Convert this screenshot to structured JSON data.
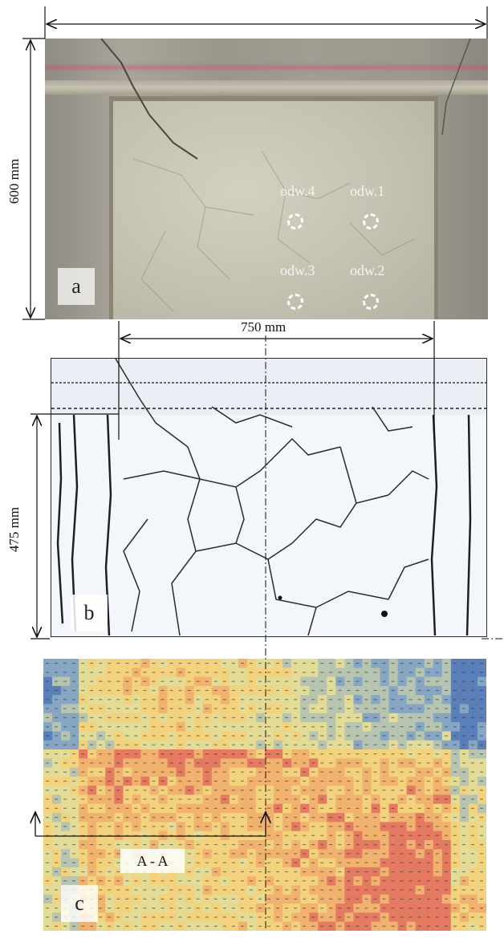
{
  "dimensions": {
    "panel_a_height": "600 mm",
    "inner_width": "750 mm",
    "panel_b_height": "475 mm"
  },
  "panels": {
    "a": "a",
    "b": "b",
    "c": "c"
  },
  "measurement_points": [
    {
      "label": "odw.4"
    },
    {
      "label": "odw.1"
    },
    {
      "label": "odw.3"
    },
    {
      "label": "odw.2"
    }
  ],
  "section_label": "A - A",
  "heatmap": {
    "colors": [
      "#5b7fb8",
      "#86a6c4",
      "#b6c4b0",
      "#e2dc96",
      "#f2d27c",
      "#f0b26e",
      "#e57a62"
    ]
  }
}
